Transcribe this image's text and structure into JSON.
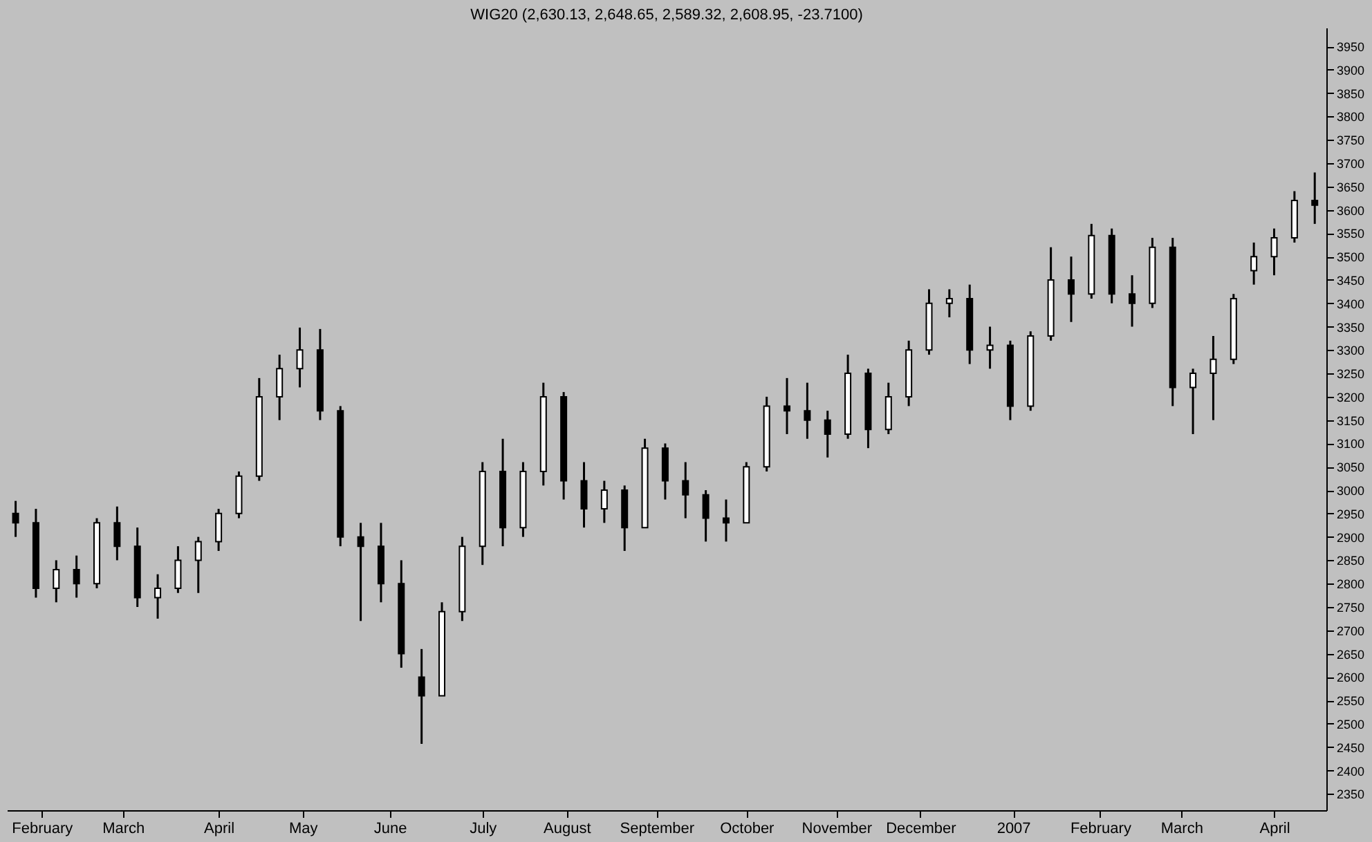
{
  "chart_data": {
    "type": "candlestick",
    "title": "WIG20 (2,630.13, 2,648.65, 2,589.32, 2,608.95, -23.7100)",
    "x": [
      "2006-01-23",
      "2006-01-30",
      "2006-02-06",
      "2006-02-13",
      "2006-02-20",
      "2006-02-27",
      "2006-03-06",
      "2006-03-13",
      "2006-03-20",
      "2006-03-27",
      "2006-04-03",
      "2006-04-10",
      "2006-04-17",
      "2006-04-24",
      "2006-05-01",
      "2006-05-08",
      "2006-05-15",
      "2006-05-22",
      "2006-05-29",
      "2006-06-05",
      "2006-06-12",
      "2006-06-19",
      "2006-06-26",
      "2006-07-03",
      "2006-07-10",
      "2006-07-17",
      "2006-07-24",
      "2006-07-31",
      "2006-08-07",
      "2006-08-14",
      "2006-08-21",
      "2006-08-28",
      "2006-09-04",
      "2006-09-11",
      "2006-09-18",
      "2006-09-25",
      "2006-10-02",
      "2006-10-09",
      "2006-10-16",
      "2006-10-23",
      "2006-10-30",
      "2006-11-06",
      "2006-11-13",
      "2006-11-20",
      "2006-11-27",
      "2006-12-04",
      "2006-12-11",
      "2006-12-18",
      "2006-12-25",
      "2007-01-01",
      "2007-01-08",
      "2007-01-15",
      "2007-01-22",
      "2007-01-29",
      "2007-02-05",
      "2007-02-12",
      "2007-02-19",
      "2007-02-26",
      "2007-03-05",
      "2007-03-12",
      "2007-03-19",
      "2007-03-26",
      "2007-04-02",
      "2007-04-09",
      "2007-04-16"
    ],
    "ohlc": [
      [
        2950,
        2977,
        2900,
        2930
      ],
      [
        2930,
        2960,
        2770,
        2790
      ],
      [
        2790,
        2850,
        2760,
        2830
      ],
      [
        2830,
        2860,
        2770,
        2800
      ],
      [
        2800,
        2940,
        2790,
        2930
      ],
      [
        2930,
        2965,
        2850,
        2880
      ],
      [
        2880,
        2920,
        2750,
        2770
      ],
      [
        2770,
        2820,
        2725,
        2790
      ],
      [
        2790,
        2880,
        2780,
        2850
      ],
      [
        2850,
        2900,
        2780,
        2890
      ],
      [
        2890,
        2960,
        2870,
        2950
      ],
      [
        2950,
        3040,
        2940,
        3030
      ],
      [
        3030,
        3240,
        3020,
        3200
      ],
      [
        3200,
        3290,
        3150,
        3260
      ],
      [
        3260,
        3348,
        3220,
        3300
      ],
      [
        3300,
        3345,
        3150,
        3170
      ],
      [
        3170,
        3180,
        2880,
        2900
      ],
      [
        2900,
        2930,
        2720,
        2880
      ],
      [
        2880,
        2930,
        2760,
        2800
      ],
      [
        2800,
        2850,
        2620,
        2650
      ],
      [
        2600,
        2660,
        2457,
        2560
      ],
      [
        2560,
        2760,
        2560,
        2740
      ],
      [
        2740,
        2900,
        2720,
        2880
      ],
      [
        2880,
        3060,
        2840,
        3040
      ],
      [
        3040,
        3110,
        2880,
        2920
      ],
      [
        2920,
        3060,
        2900,
        3040
      ],
      [
        3040,
        3230,
        3010,
        3200
      ],
      [
        3200,
        3210,
        2980,
        3020
      ],
      [
        3020,
        3060,
        2920,
        2960
      ],
      [
        2960,
        3020,
        2930,
        3000
      ],
      [
        3000,
        3010,
        2870,
        2920
      ],
      [
        2920,
        3110,
        2920,
        3090
      ],
      [
        3090,
        3100,
        2980,
        3020
      ],
      [
        3020,
        3060,
        2940,
        2990
      ],
      [
        2990,
        3000,
        2890,
        2940
      ],
      [
        2940,
        2980,
        2890,
        2930
      ],
      [
        2930,
        3060,
        2930,
        3050
      ],
      [
        3050,
        3200,
        3040,
        3180
      ],
      [
        3180,
        3240,
        3120,
        3170
      ],
      [
        3170,
        3230,
        3110,
        3150
      ],
      [
        3150,
        3170,
        3070,
        3120
      ],
      [
        3120,
        3290,
        3110,
        3250
      ],
      [
        3250,
        3260,
        3090,
        3130
      ],
      [
        3130,
        3230,
        3120,
        3200
      ],
      [
        3200,
        3320,
        3180,
        3300
      ],
      [
        3300,
        3430,
        3290,
        3400
      ],
      [
        3400,
        3430,
        3370,
        3410
      ],
      [
        3410,
        3440,
        3270,
        3300
      ],
      [
        3300,
        3350,
        3260,
        3310
      ],
      [
        3310,
        3320,
        3150,
        3180
      ],
      [
        3180,
        3340,
        3170,
        3330
      ],
      [
        3330,
        3520,
        3320,
        3450
      ],
      [
        3450,
        3500,
        3360,
        3420
      ],
      [
        3420,
        3570,
        3410,
        3545
      ],
      [
        3545,
        3560,
        3400,
        3420
      ],
      [
        3420,
        3460,
        3350,
        3400
      ],
      [
        3400,
        3540,
        3390,
        3520
      ],
      [
        3520,
        3540,
        3180,
        3220
      ],
      [
        3220,
        3260,
        3120,
        3250
      ],
      [
        3250,
        3330,
        3150,
        3280
      ],
      [
        3280,
        3420,
        3270,
        3410
      ],
      [
        3470,
        3530,
        3440,
        3500
      ],
      [
        3500,
        3560,
        3460,
        3540
      ],
      [
        3540,
        3640,
        3530,
        3620
      ],
      [
        3620,
        3680,
        3570,
        3610
      ]
    ],
    "color": "#000000",
    "xlim": [
      "2006-01-20",
      "2007-04-20"
    ],
    "ylim": [
      2315,
      3990
    ],
    "xticks": [
      {
        "value": "2006-02-01",
        "label": "February"
      },
      {
        "value": "2006-03-01",
        "label": "March"
      },
      {
        "value": "2006-04-03",
        "label": "April"
      },
      {
        "value": "2006-05-02",
        "label": "May"
      },
      {
        "value": "2006-06-01",
        "label": "June"
      },
      {
        "value": "2006-07-03",
        "label": "July"
      },
      {
        "value": "2006-08-01",
        "label": "August"
      },
      {
        "value": "2006-09-01",
        "label": "September"
      },
      {
        "value": "2006-10-02",
        "label": "October"
      },
      {
        "value": "2006-11-02",
        "label": "November"
      },
      {
        "value": "2006-12-01",
        "label": "December"
      },
      {
        "value": "2007-01-02",
        "label": "2007"
      },
      {
        "value": "2007-02-01",
        "label": "February"
      },
      {
        "value": "2007-03-01",
        "label": "March"
      },
      {
        "value": "2007-04-02",
        "label": "April"
      }
    ],
    "yticks": [
      2350,
      2400,
      2450,
      2500,
      2550,
      2600,
      2650,
      2700,
      2750,
      2800,
      2850,
      2900,
      2950,
      3000,
      3050,
      3100,
      3150,
      3200,
      3250,
      3300,
      3350,
      3400,
      3450,
      3500,
      3550,
      3600,
      3650,
      3700,
      3750,
      3800,
      3850,
      3900,
      3950
    ],
    "grid": false
  }
}
